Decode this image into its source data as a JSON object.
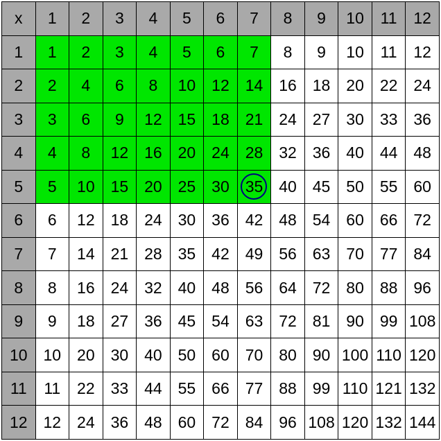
{
  "table": {
    "type": "table",
    "size": 12,
    "corner_label": "x",
    "col_headers": [
      1,
      2,
      3,
      4,
      5,
      6,
      7,
      8,
      9,
      10,
      11,
      12
    ],
    "row_headers": [
      1,
      2,
      3,
      4,
      5,
      6,
      7,
      8,
      9,
      10,
      11,
      12
    ],
    "highlight": {
      "rows_max": 5,
      "cols_max": 7
    },
    "circled": {
      "row": 5,
      "col": 7,
      "value": 35
    },
    "colors": {
      "header_bg": "#a9a9a9",
      "highlight_bg": "#00e600",
      "background": "#ffffff",
      "border": "#000000",
      "circle": "#000080",
      "text": "#000000"
    },
    "font_size": 23,
    "cell_border_width": 1,
    "rows": [
      [
        1,
        2,
        3,
        4,
        5,
        6,
        7,
        8,
        9,
        10,
        11,
        12
      ],
      [
        2,
        4,
        6,
        8,
        10,
        12,
        14,
        16,
        18,
        20,
        22,
        24
      ],
      [
        3,
        6,
        9,
        12,
        15,
        18,
        21,
        24,
        27,
        30,
        33,
        36
      ],
      [
        4,
        8,
        12,
        16,
        20,
        24,
        28,
        32,
        36,
        40,
        44,
        48
      ],
      [
        5,
        10,
        15,
        20,
        25,
        30,
        35,
        40,
        45,
        50,
        55,
        60
      ],
      [
        6,
        12,
        18,
        24,
        30,
        36,
        42,
        48,
        54,
        60,
        66,
        72
      ],
      [
        7,
        14,
        21,
        28,
        35,
        42,
        49,
        56,
        63,
        70,
        77,
        84
      ],
      [
        8,
        16,
        24,
        32,
        40,
        48,
        56,
        64,
        72,
        80,
        88,
        96
      ],
      [
        9,
        18,
        27,
        36,
        45,
        54,
        63,
        72,
        81,
        90,
        99,
        108
      ],
      [
        10,
        20,
        30,
        40,
        50,
        60,
        70,
        80,
        90,
        100,
        110,
        120
      ],
      [
        11,
        22,
        33,
        44,
        55,
        66,
        77,
        88,
        99,
        110,
        121,
        132
      ],
      [
        12,
        24,
        36,
        48,
        60,
        72,
        84,
        96,
        108,
        120,
        132,
        144
      ]
    ]
  }
}
